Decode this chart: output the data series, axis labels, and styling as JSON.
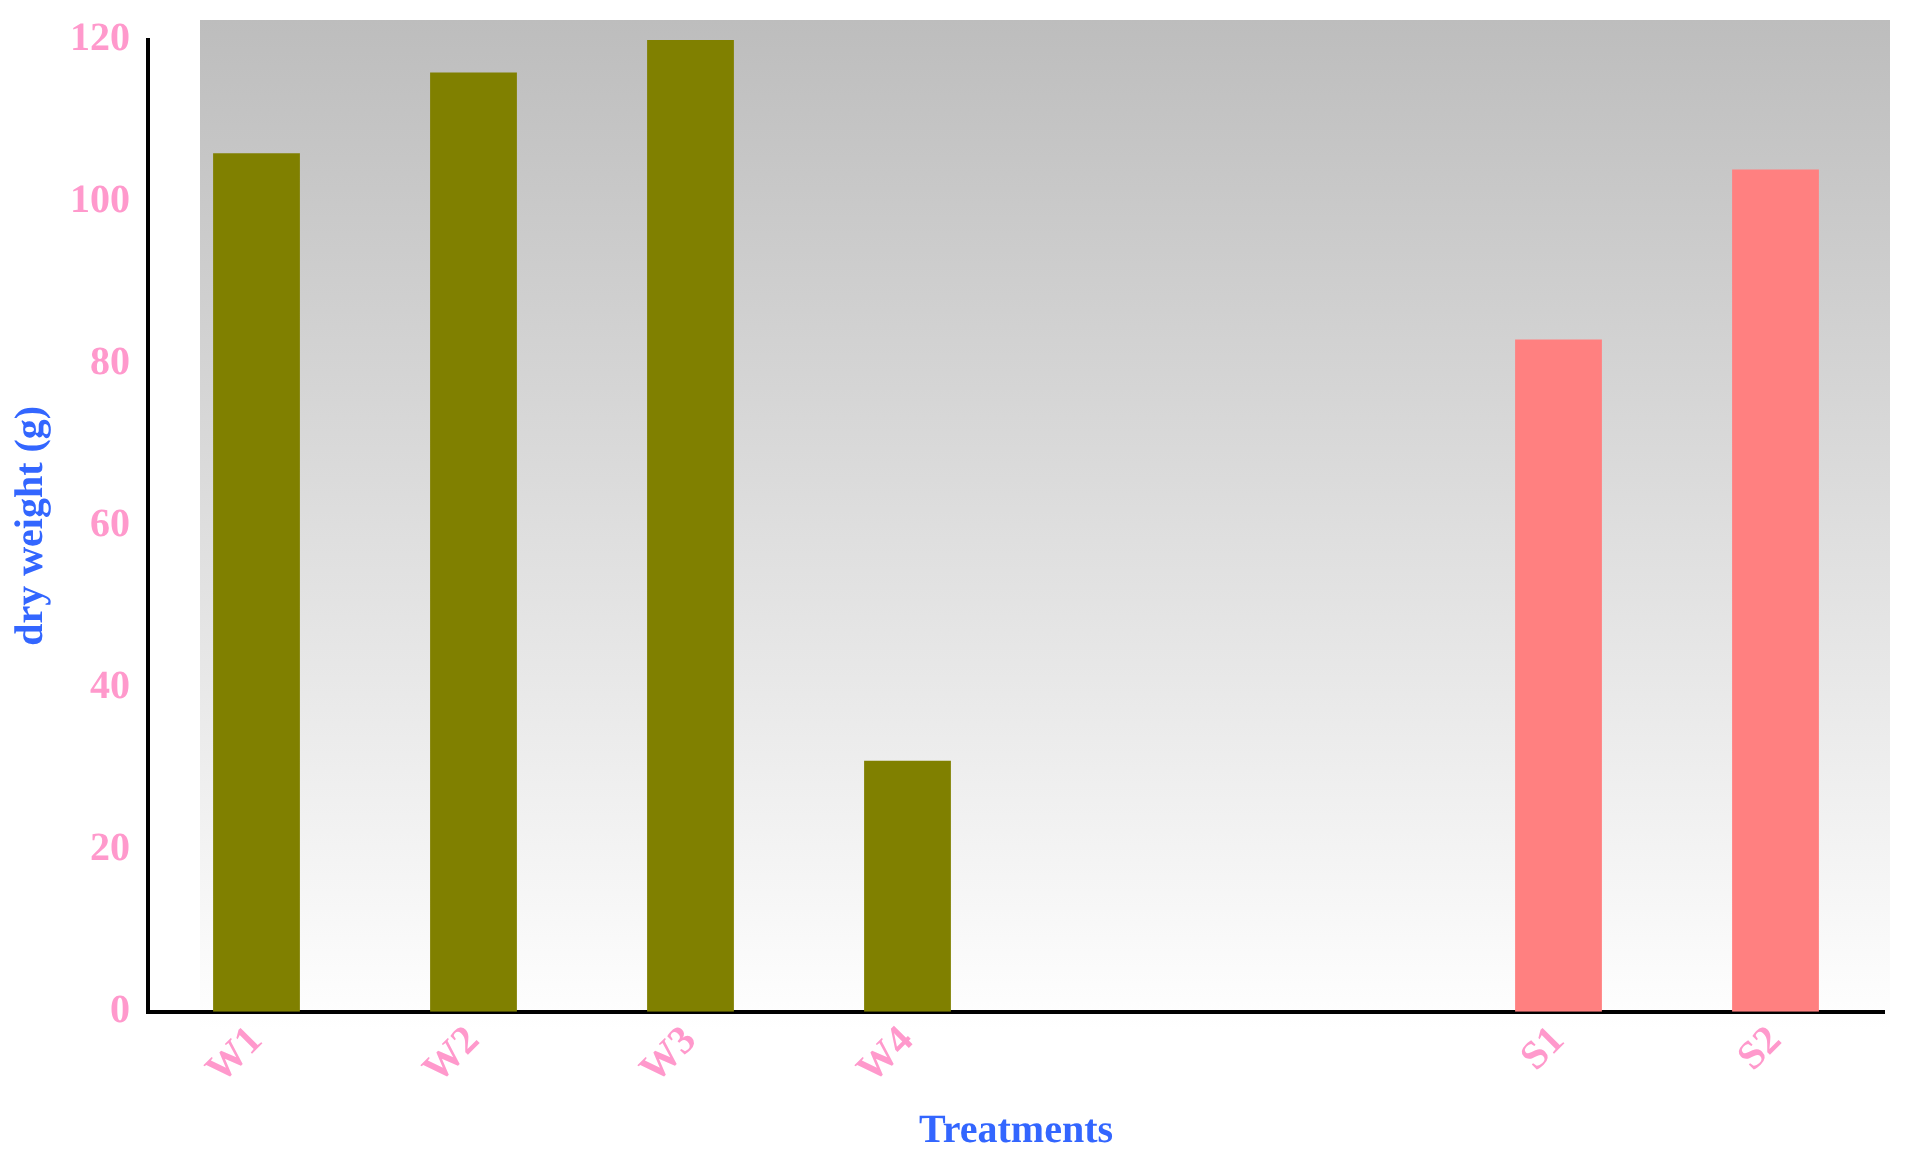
{
  "chart_data": {
    "type": "bar",
    "xlabel": "Treatments",
    "ylabel": "dry weight (g)",
    "categories": [
      "W1",
      "W2",
      "W3",
      "W4",
      null,
      null,
      "S1",
      "S2"
    ],
    "values": [
      106,
      116,
      120,
      31,
      null,
      null,
      83,
      104
    ],
    "colors": [
      "#808000",
      "#808000",
      "#808000",
      "#808000",
      "#808000",
      "#808000",
      "#ff8080",
      "#ff8080"
    ],
    "ylim": [
      0,
      120
    ],
    "yticks": [
      0,
      20,
      40,
      60,
      80,
      100,
      120
    ],
    "grid": false,
    "legend": false
  }
}
